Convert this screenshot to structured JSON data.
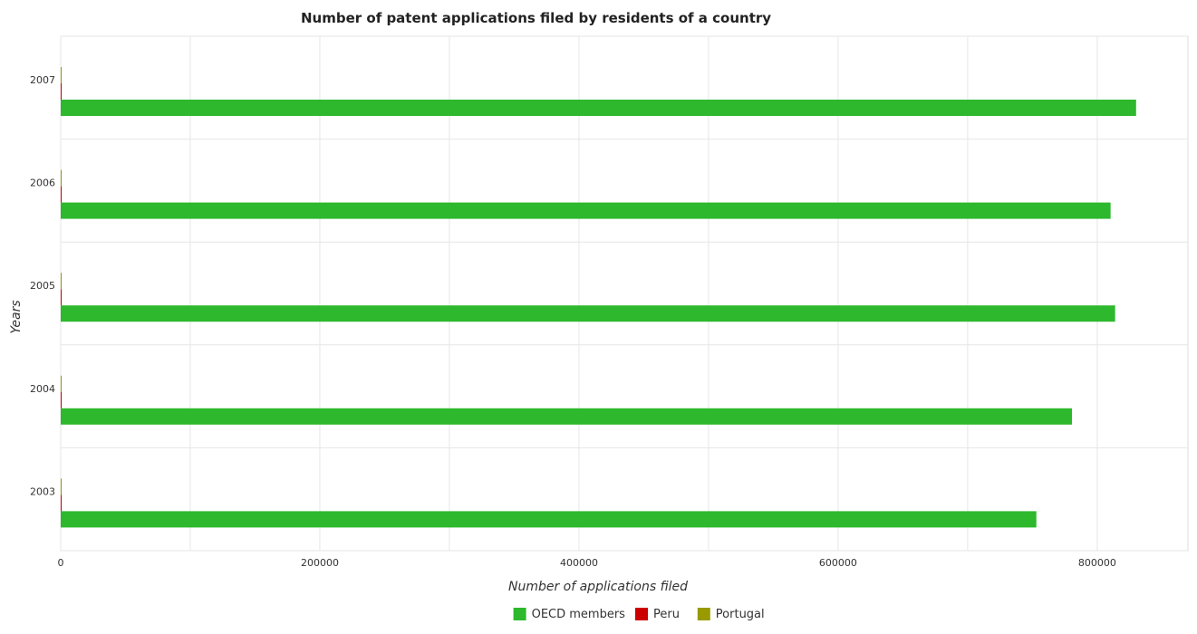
{
  "chart_data": {
    "type": "bar",
    "orientation": "horizontal",
    "title": "Number of patent applications filed by residents of a country",
    "xlabel": "Number of applications filed",
    "ylabel": "Years",
    "categories": [
      "2003",
      "2004",
      "2005",
      "2006",
      "2007"
    ],
    "series": [
      {
        "name": "OECD members",
        "color": "#2db82d",
        "values": [
          753000,
          780500,
          813800,
          810300,
          830000
        ]
      },
      {
        "name": "Peru",
        "color": "#cc0000",
        "values": [
          30,
          35,
          30,
          30,
          30
        ]
      },
      {
        "name": "Portugal",
        "color": "#999900",
        "values": [
          100,
          120,
          140,
          150,
          130
        ]
      }
    ],
    "xlim": [
      0,
      870000
    ],
    "xticks": [
      0,
      200000,
      400000,
      600000,
      800000
    ],
    "xtick_labels": [
      "0",
      "200000",
      "400000",
      "600000",
      "800000"
    ],
    "grid": true,
    "legend_position": "bottom"
  }
}
